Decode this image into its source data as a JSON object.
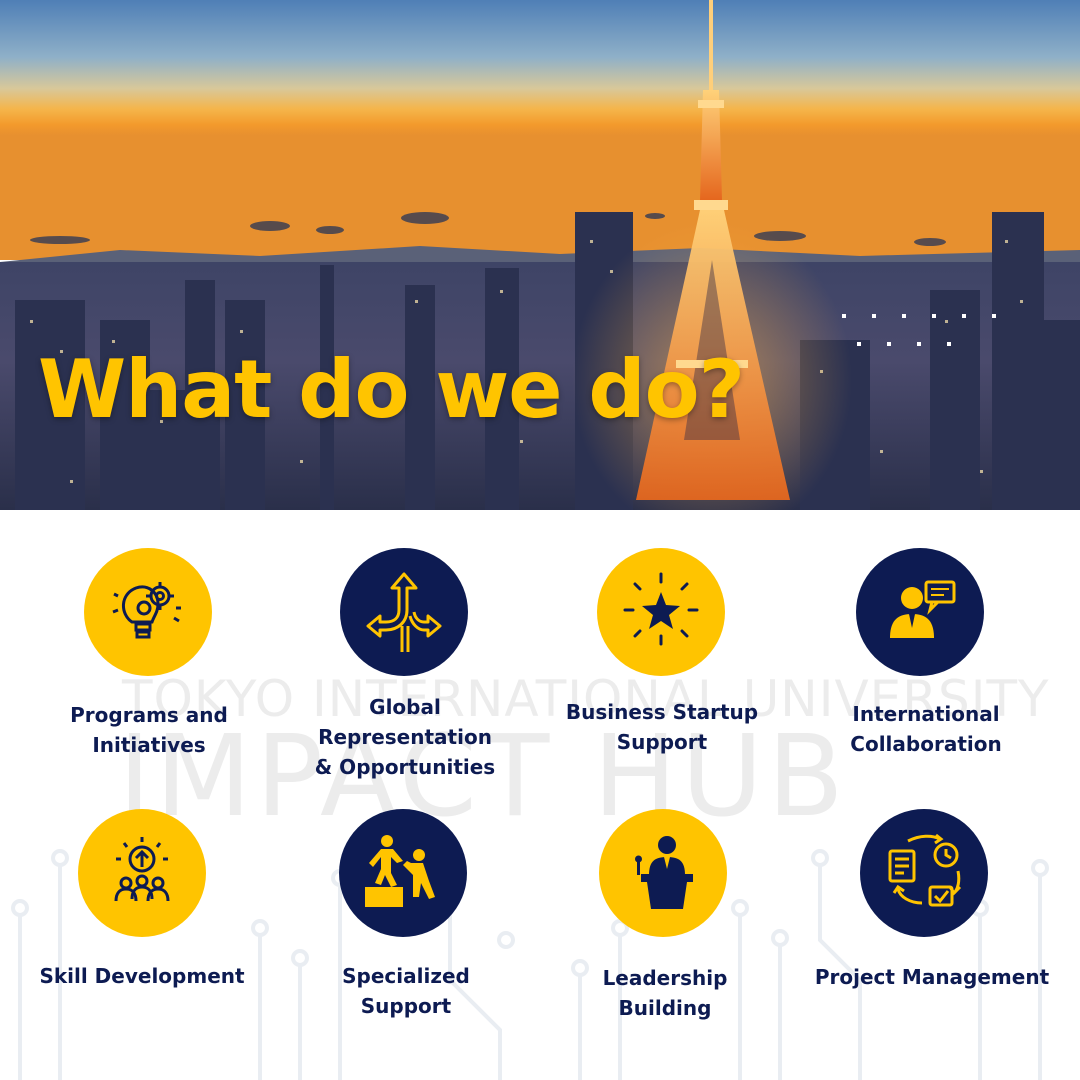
{
  "hero": {
    "title": "What do we do?"
  },
  "watermark": {
    "line1": "TOKYO INTERNATIONAL UNIVERSITY",
    "line2": "IMPACT HUB"
  },
  "services": [
    {
      "label": "Programs and\nInitiatives",
      "icon": "gear-lightbulb-icon",
      "circle_color": "#ffc400"
    },
    {
      "label": "Global\nRepresentation\n& Opportunities",
      "icon": "diverging-arrows-icon",
      "circle_color": "#0d1b52"
    },
    {
      "label": "Business Startup\nSupport",
      "icon": "star-burst-icon",
      "circle_color": "#ffc400"
    },
    {
      "label": "International\nCollaboration",
      "icon": "businessman-speech-icon",
      "circle_color": "#0d1b52"
    },
    {
      "label": "Skill Development",
      "icon": "team-growth-icon",
      "circle_color": "#ffc400"
    },
    {
      "label": "Specialized\nSupport",
      "icon": "helping-hand-climb-icon",
      "circle_color": "#0d1b52"
    },
    {
      "label": "Leadership\nBuilding",
      "icon": "speaker-podium-icon",
      "circle_color": "#ffc400"
    },
    {
      "label": "Project Management",
      "icon": "workflow-cycle-icon",
      "circle_color": "#0d1b52"
    }
  ],
  "colors": {
    "brand_yellow": "#ffc400",
    "brand_navy": "#0d1b52"
  }
}
